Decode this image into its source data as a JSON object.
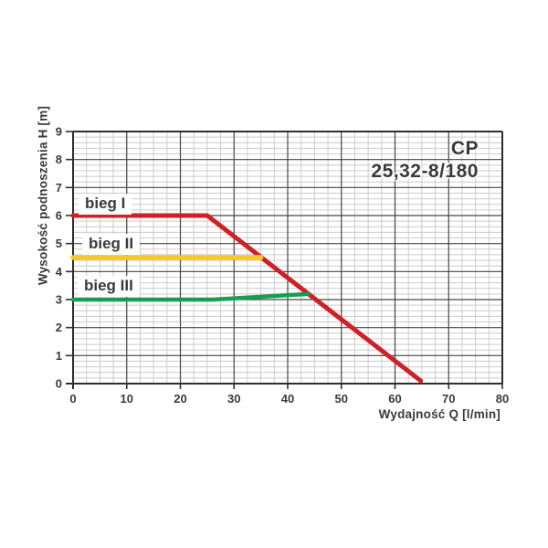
{
  "chart_data": {
    "type": "line",
    "title": "CP 25,32-8/180",
    "title_line1": "CP",
    "title_line2": "25,32-8/180",
    "xlabel": "Wydajność Q [l/min]",
    "ylabel": "Wysokość podnoszenia H [m]",
    "xlim": [
      0,
      80
    ],
    "ylim": [
      0,
      9
    ],
    "x_ticks": [
      0,
      10,
      20,
      30,
      40,
      50,
      60,
      70,
      80
    ],
    "y_ticks": [
      0,
      1,
      2,
      3,
      4,
      5,
      6,
      7,
      8,
      9
    ],
    "grid": {
      "major": true,
      "minor": true,
      "minor_x_step": 2.5,
      "minor_y_step": 0.2,
      "major_color": "#454545",
      "minor_color": "#cccccc",
      "border_color": "#2e2e2e"
    },
    "legend_position": "labels-on-chart",
    "series": [
      {
        "name": "bieg I",
        "color": "#cd2127",
        "points": [
          [
            0,
            6
          ],
          [
            25,
            6
          ],
          [
            64.8,
            0.1
          ]
        ]
      },
      {
        "name": "bieg II",
        "color": "#f6c92b",
        "points": [
          [
            0,
            4.5
          ],
          [
            35,
            4.5
          ]
        ]
      },
      {
        "name": "bieg III",
        "color": "#169e54",
        "points": [
          [
            0,
            3
          ],
          [
            26,
            3
          ],
          [
            43.8,
            3.2
          ]
        ]
      }
    ],
    "text_color": "#3a3a3a"
  }
}
